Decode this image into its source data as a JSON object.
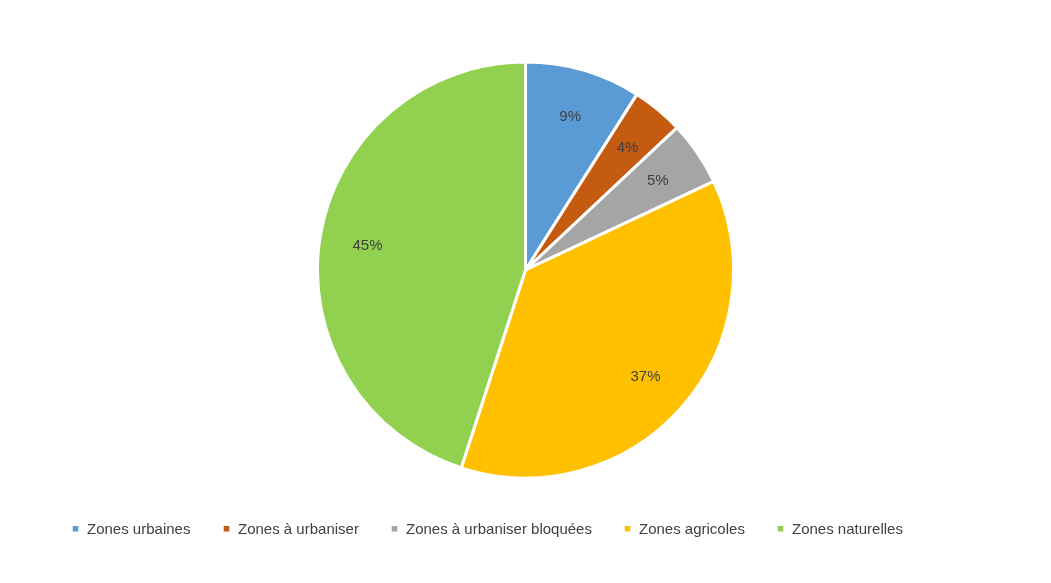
{
  "chart_data": {
    "type": "pie",
    "categories": [
      "Zones urbaines",
      "Zones à urbaniser",
      "Zones à urbaniser bloquées",
      "Zones agricoles",
      "Zones naturelles"
    ],
    "values": [
      9,
      4,
      5,
      37,
      45
    ],
    "colors": [
      "#5b9bd5",
      "#c55a11",
      "#a5a5a5",
      "#ffc000",
      "#92d050"
    ],
    "value_labels": [
      "9%",
      "4%",
      "5%",
      "37%",
      "45%"
    ],
    "legend": "bottom"
  }
}
